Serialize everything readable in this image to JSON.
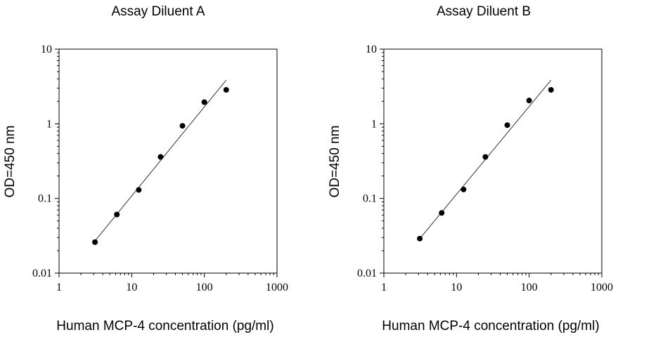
{
  "chart_data": [
    {
      "type": "scatter",
      "title": "Assay Diluent A",
      "xlabel": "Human MCP-4 concentration (pg/ml)",
      "ylabel": "OD=450 nm",
      "xscale": "log",
      "yscale": "log",
      "xlim": [
        1,
        1000
      ],
      "ylim": [
        0.01,
        10
      ],
      "x_ticks": [
        "1",
        "10",
        "100",
        "1000"
      ],
      "y_ticks": [
        "0.01",
        "0.1",
        "1",
        "10"
      ],
      "grid": false,
      "points": [
        {
          "x": 3.125,
          "y": 0.026
        },
        {
          "x": 6.25,
          "y": 0.061
        },
        {
          "x": 12.5,
          "y": 0.13
        },
        {
          "x": 25,
          "y": 0.36
        },
        {
          "x": 50,
          "y": 0.94
        },
        {
          "x": 100,
          "y": 1.95
        },
        {
          "x": 200,
          "y": 2.85
        }
      ],
      "fit_line": {
        "x": [
          3.125,
          200
        ],
        "y": [
          0.027,
          3.85
        ]
      }
    },
    {
      "type": "scatter",
      "title": "Assay Diluent B",
      "xlabel": "Human MCP-4 concentration (pg/ml)",
      "ylabel": "OD=450 nm",
      "xscale": "log",
      "yscale": "log",
      "xlim": [
        1,
        1000
      ],
      "ylim": [
        0.01,
        10
      ],
      "x_ticks": [
        "1",
        "10",
        "100",
        "1000"
      ],
      "y_ticks": [
        "0.01",
        "0.1",
        "1",
        "10"
      ],
      "grid": false,
      "points": [
        {
          "x": 3.125,
          "y": 0.029
        },
        {
          "x": 6.25,
          "y": 0.064
        },
        {
          "x": 12.5,
          "y": 0.132
        },
        {
          "x": 25,
          "y": 0.36
        },
        {
          "x": 50,
          "y": 0.96
        },
        {
          "x": 100,
          "y": 2.05
        },
        {
          "x": 200,
          "y": 2.85
        }
      ],
      "fit_line": {
        "x": [
          3.125,
          200
        ],
        "y": [
          0.029,
          3.85
        ]
      }
    }
  ]
}
